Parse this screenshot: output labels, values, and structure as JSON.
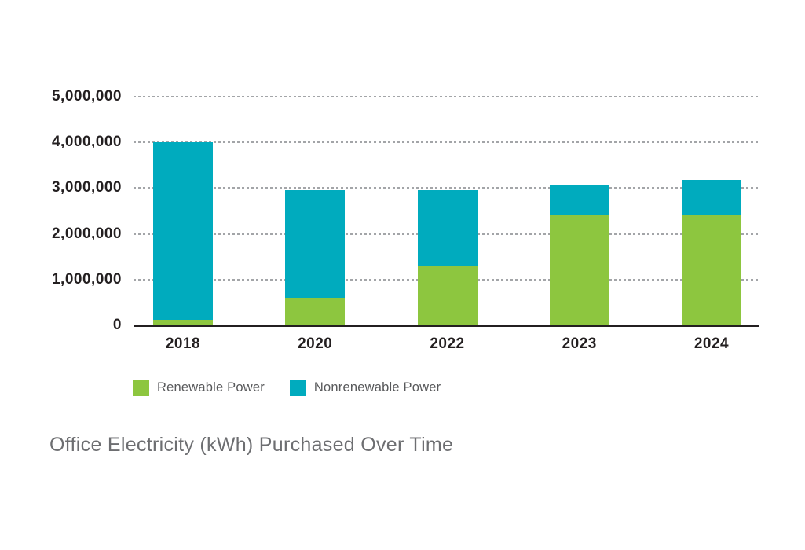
{
  "chart_data": {
    "type": "bar",
    "subtype": "stacked",
    "title": "Office Electricity (kWh) Purchased Over Time",
    "categories": [
      "2018",
      "2020",
      "2022",
      "2023",
      "2024"
    ],
    "series": [
      {
        "name": "Renewable Power",
        "color": "#8DC63F",
        "values": [
          120000,
          600000,
          1300000,
          2400000,
          2400000
        ]
      },
      {
        "name": "Nonrenewable Power",
        "color": "#00ABBE",
        "values": [
          3880000,
          2360000,
          1660000,
          660000,
          780000
        ]
      }
    ],
    "totals": [
      4000000,
      2960000,
      2960000,
      3060000,
      3180000
    ],
    "ylim": [
      0,
      5000000
    ],
    "y_ticks": [
      {
        "value": 0,
        "label": "0"
      },
      {
        "value": 1000000,
        "label": "1,000,000"
      },
      {
        "value": 2000000,
        "label": "2,000,000"
      },
      {
        "value": 3000000,
        "label": "3,000,000"
      },
      {
        "value": 4000000,
        "label": "4,000,000"
      },
      {
        "value": 5000000,
        "label": "5,000,000"
      }
    ],
    "grid": "horizontal-dashed",
    "legend_position": "bottom-left"
  },
  "colors": {
    "renewable": "#8DC63F",
    "nonrenewable": "#00ABBE",
    "axis_line": "#231F20",
    "tick_label": "#231F20",
    "gridline": "#A3A5A8",
    "legend_text": "#58595B",
    "title_text": "#6D6E71",
    "background": "#FFFFFF"
  }
}
